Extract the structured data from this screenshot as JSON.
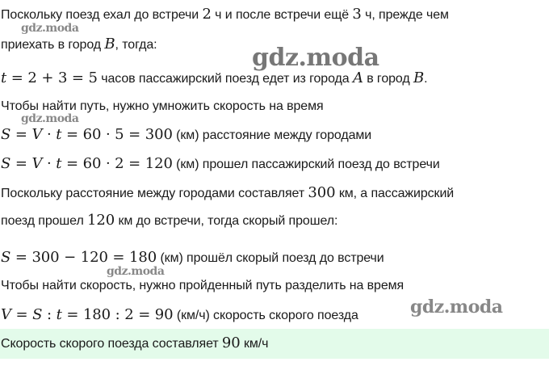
{
  "watermark": "gdz.moda",
  "answer_bg": "#e3fbea",
  "lines": [
    {
      "segments": [
        {
          "k": "text",
          "text": "Поскольку поезд ехал до встречи "
        },
        {
          "k": "math",
          "text": "2"
        },
        {
          "k": "text",
          "text": " ч и после встречи ещё "
        },
        {
          "k": "math",
          "text": "3"
        },
        {
          "k": "text",
          "text": " ч, прежде чем"
        }
      ]
    },
    {
      "segments": [
        {
          "k": "text",
          "text": "приехать в город "
        },
        {
          "k": "var",
          "text": "B"
        },
        {
          "k": "text",
          "text": ", тогда:"
        }
      ]
    },
    {
      "segments": [
        {
          "k": "var",
          "text": "t"
        },
        {
          "k": "math",
          "text": " = 2 + 3 = 5"
        },
        {
          "k": "text",
          "text": " часов пассажирский поезд едет из города "
        },
        {
          "k": "var",
          "text": "A"
        },
        {
          "k": "text",
          "text": " в город "
        },
        {
          "k": "var",
          "text": "B"
        },
        {
          "k": "text",
          "text": "."
        }
      ]
    },
    {
      "segments": [
        {
          "k": "text",
          "text": "Чтобы найти путь, нужно умножить скорость на время"
        }
      ]
    },
    {
      "segments": [
        {
          "k": "var",
          "text": "S"
        },
        {
          "k": "math",
          "text": " = "
        },
        {
          "k": "var",
          "text": "V"
        },
        {
          "k": "math",
          "text": " · "
        },
        {
          "k": "var",
          "text": "t"
        },
        {
          "k": "math",
          "text": " = 60 · 5 = 300"
        },
        {
          "k": "text",
          "text": " (км) расстояние между городами"
        }
      ]
    },
    {
      "segments": [
        {
          "k": "var",
          "text": "S"
        },
        {
          "k": "math",
          "text": " = "
        },
        {
          "k": "var",
          "text": "V"
        },
        {
          "k": "math",
          "text": " · "
        },
        {
          "k": "var",
          "text": "t"
        },
        {
          "k": "math",
          "text": " = 60 · 2 = 120"
        },
        {
          "k": "text",
          "text": " (км) прошел пассажирский поезд до встречи"
        }
      ]
    },
    {
      "segments": [
        {
          "k": "text",
          "text": "Поскольку расстояние между городами составляет "
        },
        {
          "k": "math",
          "text": "300"
        },
        {
          "k": "text",
          "text": " км, а пассажирский"
        }
      ]
    },
    {
      "segments": [
        {
          "k": "text",
          "text": "поезд прошел "
        },
        {
          "k": "math",
          "text": "120"
        },
        {
          "k": "text",
          "text": " км до встречи, тогда скорый прошел:"
        }
      ]
    },
    {
      "segments": [
        {
          "k": "var",
          "text": "S"
        },
        {
          "k": "math",
          "text": " = 300 − 120 = 180"
        },
        {
          "k": "text",
          "text": " (км) прошёл скорый поезд до встречи"
        }
      ]
    },
    {
      "segments": [
        {
          "k": "text",
          "text": "Чтобы найти скорость, нужно пройденный путь разделить на время"
        }
      ]
    },
    {
      "segments": [
        {
          "k": "var",
          "text": "V"
        },
        {
          "k": "math",
          "text": " = "
        },
        {
          "k": "var",
          "text": "S"
        },
        {
          "k": "math",
          "text": " : "
        },
        {
          "k": "var",
          "text": "t"
        },
        {
          "k": "math",
          "text": " = 180 : 2 = 90"
        },
        {
          "k": "text",
          "text": " (км/ч) скорость скорого поезда"
        }
      ]
    },
    {
      "segments": [
        {
          "k": "text",
          "text": "Скорость скорого поезда составляет "
        },
        {
          "k": "math",
          "text": "90"
        },
        {
          "k": "text",
          "text": " км/ч"
        }
      ]
    }
  ]
}
